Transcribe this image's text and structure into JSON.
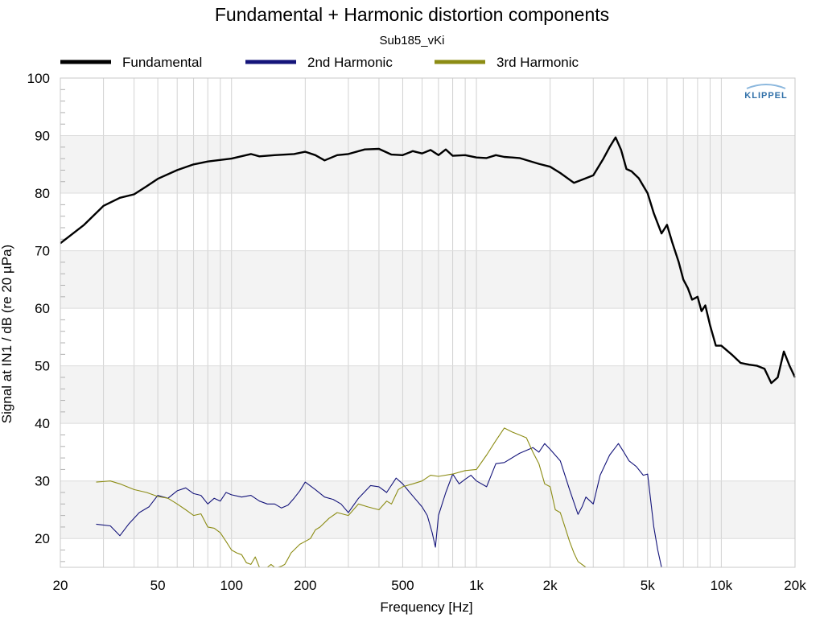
{
  "chart_data": {
    "type": "line",
    "title": "Fundamental + Harmonic distortion components",
    "subtitle": "Sub185_vKi",
    "xlabel": "Frequency [Hz]",
    "ylabel": "Signal at IN1 / dB (re 20 µPa)",
    "x_scale": "log",
    "xlim": [
      20,
      20000
    ],
    "ylim": [
      15,
      100
    ],
    "x_ticks": [
      20,
      50,
      100,
      200,
      500,
      1000,
      2000,
      5000,
      10000,
      20000
    ],
    "x_tick_labels": [
      "20",
      "50",
      "100",
      "200",
      "500",
      "1k",
      "2k",
      "5k",
      "10k",
      "20k"
    ],
    "y_ticks": [
      20,
      30,
      40,
      50,
      60,
      70,
      80,
      90,
      100
    ],
    "y_tick_labels": [
      "20",
      "30",
      "40",
      "50",
      "60",
      "70",
      "80",
      "90",
      "100"
    ],
    "grid": true,
    "shaded_bands": [
      [
        20,
        30
      ],
      [
        40,
        50
      ],
      [
        60,
        70
      ],
      [
        80,
        90
      ]
    ],
    "legend_position": "top",
    "logo": "KLIPPEL",
    "series": [
      {
        "name": "Fundamental",
        "color": "#000000",
        "x": [
          20,
          25,
          30,
          35,
          40,
          45,
          50,
          60,
          70,
          80,
          100,
          120,
          130,
          150,
          180,
          200,
          220,
          240,
          270,
          300,
          350,
          400,
          450,
          500,
          550,
          600,
          650,
          700,
          750,
          800,
          900,
          1000,
          1100,
          1200,
          1300,
          1400,
          1500,
          1700,
          1800,
          2000,
          2200,
          2500,
          2800,
          3000,
          3300,
          3500,
          3700,
          3900,
          4100,
          4300,
          4600,
          5000,
          5300,
          5700,
          6000,
          6300,
          6700,
          7000,
          7300,
          7600,
          8000,
          8300,
          8600,
          9000,
          9500,
          10000,
          11000,
          12000,
          13000,
          14000,
          15000,
          16000,
          17000,
          18000,
          19000,
          20000
        ],
        "y": [
          71.3,
          74.5,
          77.8,
          79.2,
          79.8,
          81.2,
          82.5,
          84.0,
          85.0,
          85.5,
          86.0,
          86.8,
          86.4,
          86.6,
          86.8,
          87.2,
          86.6,
          85.7,
          86.6,
          86.8,
          87.6,
          87.7,
          86.7,
          86.6,
          87.3,
          86.9,
          87.5,
          86.6,
          87.6,
          86.5,
          86.6,
          86.2,
          86.1,
          86.6,
          86.3,
          86.2,
          86.1,
          85.4,
          85.1,
          84.6,
          83.5,
          81.8,
          82.6,
          83.1,
          86.0,
          88.0,
          89.7,
          87.5,
          84.2,
          83.8,
          82.6,
          80.0,
          76.5,
          73.0,
          74.5,
          71.5,
          68.0,
          65.0,
          63.5,
          61.5,
          62.0,
          59.5,
          60.5,
          57.0,
          53.5,
          53.5,
          52.0,
          50.5,
          50.2,
          50.0,
          49.5,
          47.0,
          48.0,
          52.5,
          50.0,
          48.0
        ]
      },
      {
        "name": "2nd Harmonic",
        "color": "#14147a",
        "x": [
          28,
          32,
          35,
          38,
          42,
          46,
          50,
          55,
          60,
          65,
          70,
          75,
          80,
          85,
          90,
          95,
          100,
          110,
          120,
          130,
          140,
          150,
          160,
          170,
          180,
          190,
          200,
          220,
          240,
          260,
          280,
          300,
          330,
          370,
          400,
          430,
          470,
          500,
          530,
          560,
          600,
          630,
          660,
          680,
          700,
          750,
          800,
          850,
          900,
          950,
          1000,
          1100,
          1200,
          1300,
          1500,
          1700,
          1800,
          1900,
          2000,
          2200,
          2400,
          2600,
          2700,
          2800,
          3000,
          3200,
          3500,
          3800,
          4000,
          4200,
          4500,
          4800,
          5000,
          5300,
          5500,
          5700,
          6000
        ],
        "y": [
          22.5,
          22.2,
          20.5,
          22.5,
          24.5,
          25.5,
          27.5,
          27.0,
          28.3,
          28.8,
          27.8,
          27.5,
          26.0,
          27.0,
          26.5,
          28.0,
          27.6,
          27.2,
          27.5,
          26.5,
          26.0,
          26.0,
          25.3,
          25.8,
          27.0,
          28.3,
          29.8,
          28.5,
          27.2,
          26.8,
          26.0,
          24.5,
          27.0,
          29.2,
          29.0,
          28.0,
          30.5,
          29.5,
          28.2,
          27.0,
          25.5,
          24.0,
          21.0,
          18.5,
          24.0,
          28.0,
          31.2,
          29.5,
          30.3,
          31.0,
          30.0,
          29.0,
          33.0,
          33.2,
          34.8,
          35.8,
          35.0,
          36.5,
          35.5,
          33.5,
          28.5,
          24.2,
          25.5,
          27.2,
          26.0,
          31.0,
          34.5,
          36.5,
          35.0,
          33.5,
          32.5,
          31.0,
          31.2,
          22.0,
          18.0,
          15.0,
          15.0
        ]
      },
      {
        "name": "3rd Harmonic",
        "color": "#8c8c14",
        "x": [
          28,
          32,
          35,
          40,
          45,
          50,
          55,
          60,
          65,
          70,
          75,
          80,
          85,
          90,
          95,
          100,
          105,
          110,
          115,
          120,
          125,
          130,
          135,
          140,
          145,
          150,
          155,
          160,
          165,
          170,
          175,
          180,
          190,
          200,
          210,
          220,
          230,
          250,
          270,
          300,
          330,
          360,
          400,
          430,
          450,
          480,
          500,
          550,
          600,
          650,
          700,
          800,
          900,
          1000,
          1100,
          1200,
          1300,
          1400,
          1500,
          1600,
          1700,
          1800,
          1900,
          2000,
          2100,
          2200,
          2300,
          2400,
          2500,
          2600,
          2800,
          3000,
          3200,
          3500
        ],
        "y": [
          29.8,
          30.0,
          29.5,
          28.5,
          28.0,
          27.3,
          27.0,
          26.0,
          25.0,
          24.0,
          24.3,
          22.0,
          21.8,
          21.0,
          19.5,
          18.0,
          17.5,
          17.2,
          15.8,
          15.5,
          16.8,
          15.0,
          14.5,
          14.5,
          15.5,
          14.5,
          15.0,
          15.2,
          15.5,
          16.5,
          17.5,
          18.0,
          19.0,
          19.5,
          20.0,
          21.5,
          22.0,
          23.5,
          24.5,
          24.0,
          26.0,
          25.5,
          25.0,
          26.5,
          26.0,
          28.5,
          29.0,
          29.5,
          30.0,
          31.0,
          30.8,
          31.2,
          31.8,
          32.0,
          34.5,
          37.0,
          39.2,
          38.5,
          38.0,
          37.5,
          35.0,
          33.0,
          29.5,
          29.0,
          25.0,
          24.5,
          22.0,
          19.5,
          17.5,
          16.0,
          15.0,
          14.5,
          14.5,
          14.5
        ]
      }
    ]
  }
}
